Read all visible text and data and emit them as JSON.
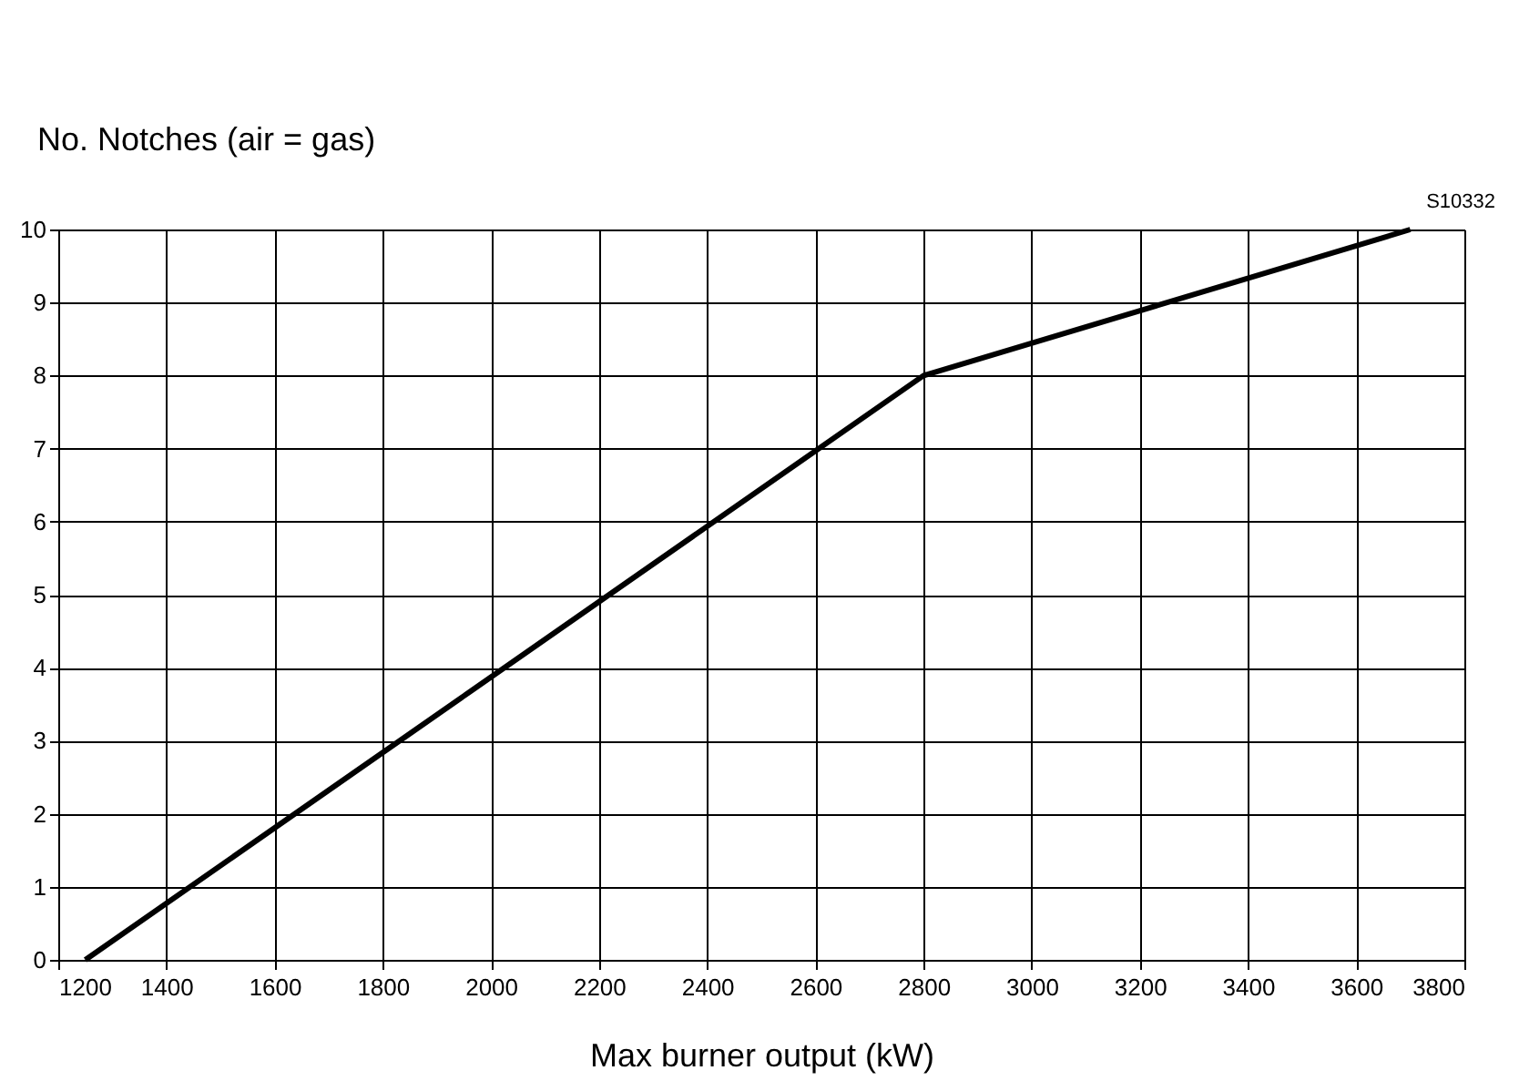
{
  "chart_data": {
    "type": "line",
    "ylabel": "No. Notches (air = gas)",
    "xlabel": "Max burner output (kW)",
    "annotations": [
      "S10332"
    ],
    "x": [
      1250,
      2800,
      3700
    ],
    "series": [
      {
        "color": "#000000",
        "values": [
          0,
          8,
          10
        ]
      }
    ],
    "xlim": [
      1200,
      3800
    ],
    "xticks": [
      1200,
      1400,
      1600,
      1800,
      2000,
      2200,
      2400,
      2600,
      2800,
      3000,
      3200,
      3400,
      3600,
      3800
    ],
    "ylim": [
      0,
      10
    ],
    "yticks": [
      0,
      1,
      2,
      3,
      4,
      5,
      6,
      7,
      8,
      9,
      10
    ],
    "grid": true,
    "marker": "none",
    "line_style": "solid"
  }
}
